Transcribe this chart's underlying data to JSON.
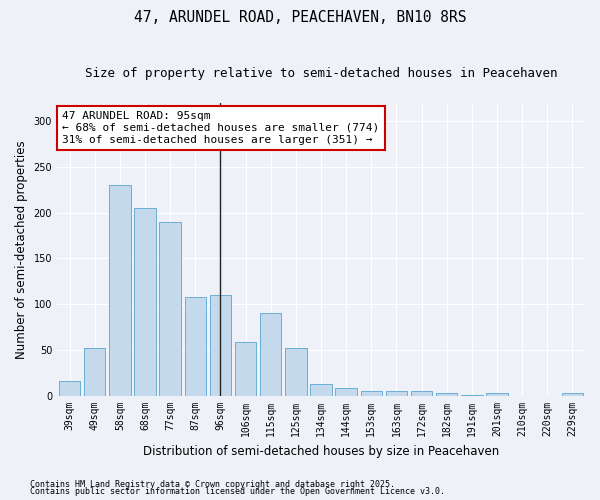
{
  "title": "47, ARUNDEL ROAD, PEACEHAVEN, BN10 8RS",
  "subtitle": "Size of property relative to semi-detached houses in Peacehaven",
  "xlabel": "Distribution of semi-detached houses by size in Peacehaven",
  "ylabel": "Number of semi-detached properties",
  "categories": [
    "39sqm",
    "49sqm",
    "58sqm",
    "68sqm",
    "77sqm",
    "87sqm",
    "96sqm",
    "106sqm",
    "115sqm",
    "125sqm",
    "134sqm",
    "144sqm",
    "153sqm",
    "163sqm",
    "172sqm",
    "182sqm",
    "191sqm",
    "201sqm",
    "210sqm",
    "220sqm",
    "229sqm"
  ],
  "values": [
    16,
    52,
    230,
    205,
    190,
    108,
    110,
    59,
    90,
    52,
    13,
    9,
    5,
    5,
    5,
    3,
    1,
    3,
    0,
    0,
    3
  ],
  "bar_color": "#c5d9ed",
  "bar_edge_color": "#6aaed6",
  "vline_index": 6,
  "annotation_title": "47 ARUNDEL ROAD: 95sqm",
  "annotation_line1": "← 68% of semi-detached houses are smaller (774)",
  "annotation_line2": "31% of semi-detached houses are larger (351) →",
  "annotation_box_color": "#ffffff",
  "annotation_border_color": "#cc0000",
  "ylim": [
    0,
    320
  ],
  "yticks": [
    0,
    50,
    100,
    150,
    200,
    250,
    300
  ],
  "footnote1": "Contains HM Land Registry data © Crown copyright and database right 2025.",
  "footnote2": "Contains public sector information licensed under the Open Government Licence v3.0.",
  "background_color": "#eef2f8",
  "title_fontsize": 10.5,
  "subtitle_fontsize": 9,
  "ylabel_fontsize": 8.5,
  "xlabel_fontsize": 8.5,
  "tick_fontsize": 7,
  "annotation_fontsize": 8,
  "footnote_fontsize": 6
}
